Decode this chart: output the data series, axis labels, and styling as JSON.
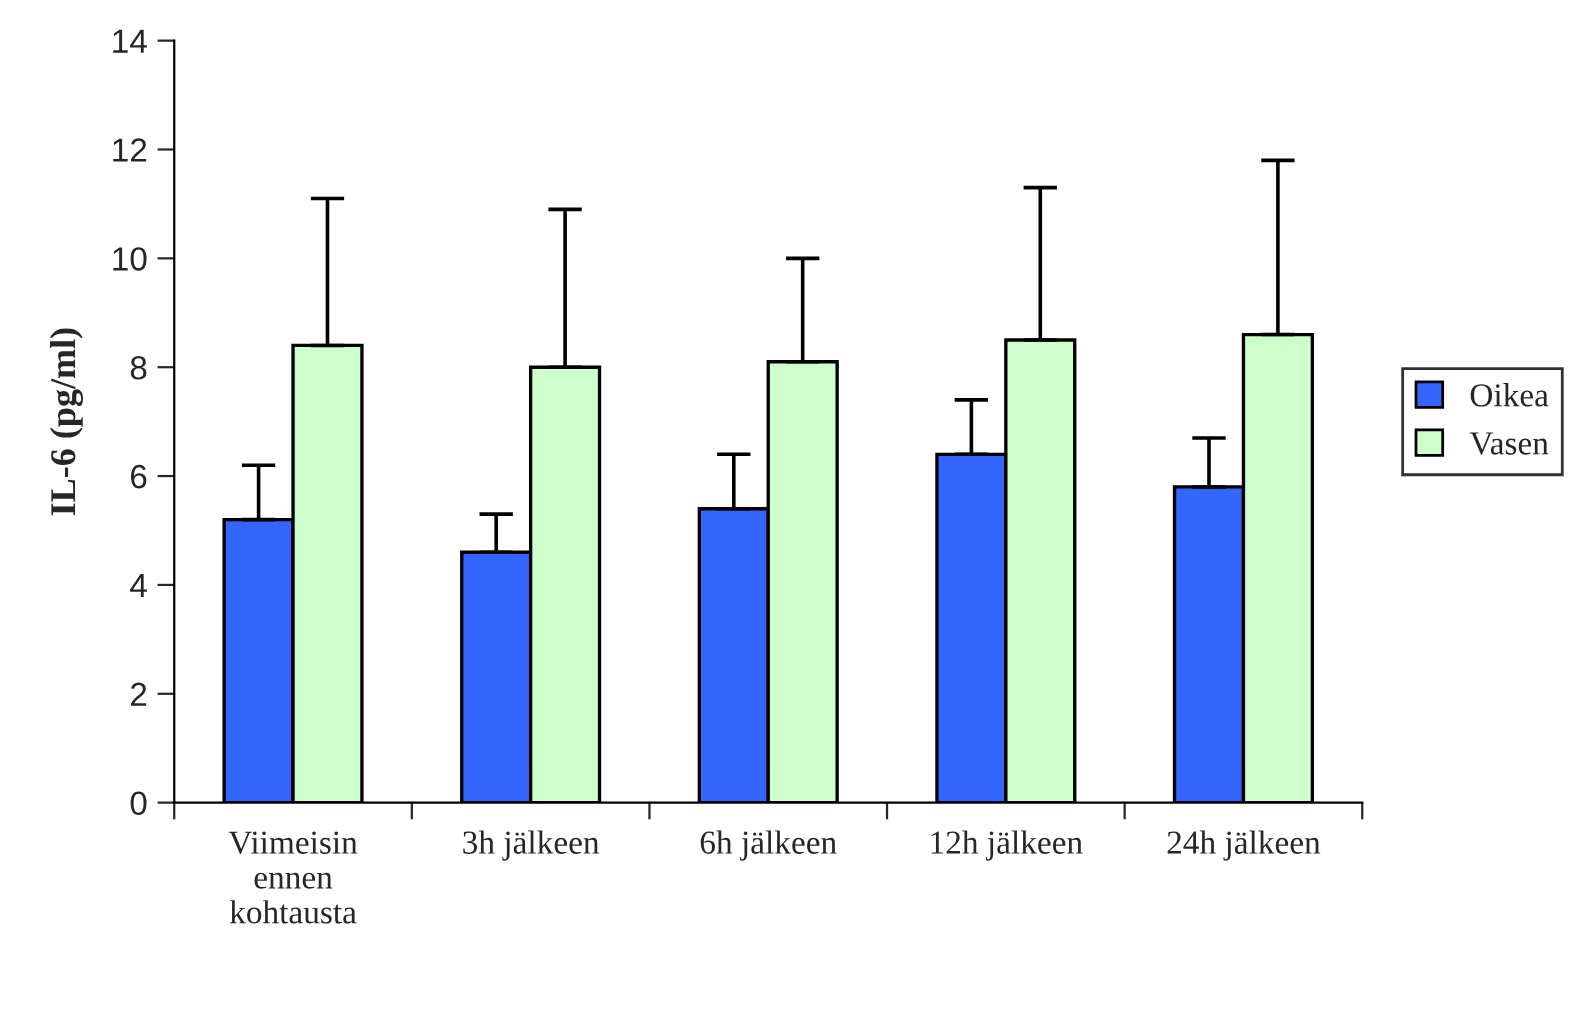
{
  "chart_data": {
    "type": "bar",
    "ylabel": "IL-6 (pg/ml)",
    "categories": [
      "Viimeisin\nennen\nkohtausta",
      "3h jälkeen",
      "6h jälkeen",
      "12h jälkeen",
      "24h jälkeen"
    ],
    "series": [
      {
        "name": "Oikea",
        "color": "#3366ff",
        "values": [
          5.2,
          4.6,
          5.4,
          6.4,
          5.8
        ],
        "errors": [
          [
            5.2,
            6.2
          ],
          [
            4.6,
            5.3
          ],
          [
            5.4,
            6.4
          ],
          [
            6.4,
            7.4
          ],
          [
            5.8,
            6.7
          ]
        ]
      },
      {
        "name": "Vasen",
        "color": "#ccffcc",
        "values": [
          8.4,
          8.0,
          8.1,
          8.5,
          8.6
        ],
        "errors": [
          [
            8.4,
            11.1
          ],
          [
            8.0,
            10.9
          ],
          [
            8.1,
            10.0
          ],
          [
            8.5,
            11.3
          ],
          [
            8.6,
            11.8
          ]
        ]
      }
    ],
    "ylim": [
      0,
      14
    ],
    "yticks": [
      0,
      2,
      4,
      6,
      8,
      10,
      12,
      14
    ],
    "grid": false,
    "legend": "right"
  }
}
